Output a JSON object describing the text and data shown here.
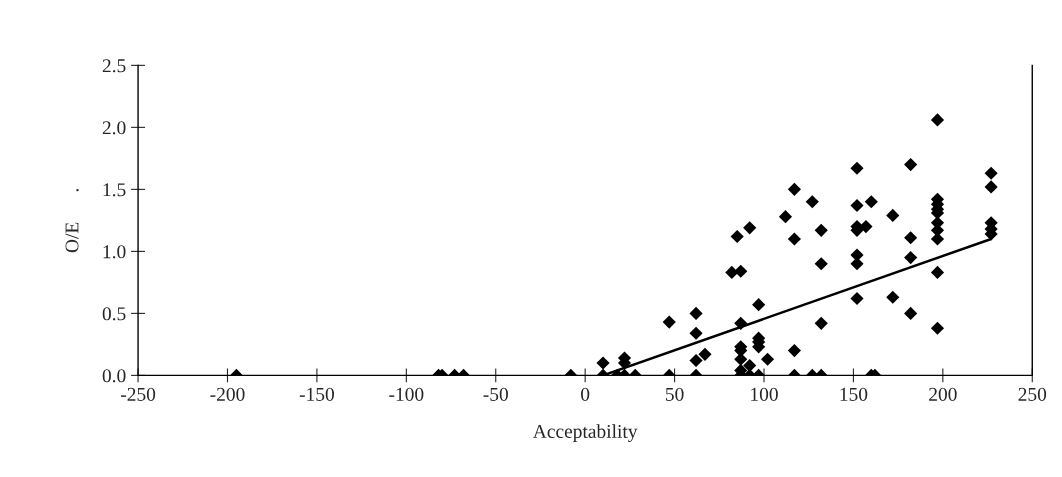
{
  "chart_data": {
    "type": "scatter",
    "xlabel": "Acceptability",
    "ylabel": "O/E      .",
    "xlim": [
      -250,
      250
    ],
    "xticks": [
      -250,
      -200,
      -150,
      -100,
      -50,
      0,
      50,
      100,
      150,
      200,
      250
    ],
    "ylim": [
      0,
      2.5
    ],
    "yticks": [
      {
        "value": 0,
        "label": "0.0"
      },
      {
        "value": 0.5,
        "label": "0.5"
      },
      {
        "value": 1,
        "label": "1.0"
      },
      {
        "value": 1.5,
        "label": "1.5"
      },
      {
        "value": 2,
        "label": "2.0"
      },
      {
        "value": 2.5,
        "label": "2.5"
      }
    ],
    "grid": false,
    "series": [
      {
        "color": "#000000",
        "marker": "diamond",
        "x": [
          -195,
          -82,
          -80,
          -73,
          -68,
          -8,
          10,
          10,
          18,
          22,
          22,
          22,
          28,
          47,
          47,
          62,
          62,
          62,
          62,
          67,
          82,
          85,
          87,
          87,
          87,
          87,
          87,
          87,
          87,
          92,
          92,
          92,
          97,
          97,
          97,
          97,
          97,
          102,
          112,
          117,
          117,
          117,
          117,
          127,
          127,
          132,
          132,
          132,
          132,
          152,
          152,
          152,
          152,
          152,
          152,
          152,
          157,
          160,
          160,
          162,
          172,
          172,
          182,
          182,
          182,
          182,
          197,
          197,
          197,
          197,
          197,
          197,
          197,
          197,
          197,
          197,
          227,
          227,
          227,
          227,
          227
        ],
        "values": [
          0,
          0,
          0,
          0,
          0,
          0,
          0,
          0.1,
          0,
          0,
          0.14,
          0.1,
          0,
          0,
          0.43,
          0,
          0.5,
          0.34,
          0.12,
          0.17,
          0.83,
          1.12,
          0.84,
          0.42,
          0.23,
          0.2,
          0.13,
          0.04,
          0,
          0,
          1.19,
          0.08,
          0.57,
          0.3,
          0.27,
          0.23,
          0,
          0.13,
          1.28,
          1.5,
          1.1,
          0.2,
          0,
          1.4,
          0,
          1.17,
          0.9,
          0.42,
          0,
          1.67,
          1.37,
          1.2,
          1.17,
          0.97,
          0.9,
          0.62,
          1.2,
          1.4,
          0,
          0,
          1.29,
          0.63,
          1.7,
          1.11,
          0.95,
          0.5,
          2.06,
          1.42,
          1.38,
          1.34,
          1.31,
          1.23,
          1.17,
          1.1,
          0.83,
          0.38,
          1.63,
          1.52,
          1.23,
          1.18,
          1.14
        ]
      },
      {
        "type": "line",
        "color": "#000000",
        "marker": "none",
        "line_style": "solid",
        "x": [
          10,
          227
        ],
        "values": [
          0,
          1.1
        ]
      }
    ]
  }
}
